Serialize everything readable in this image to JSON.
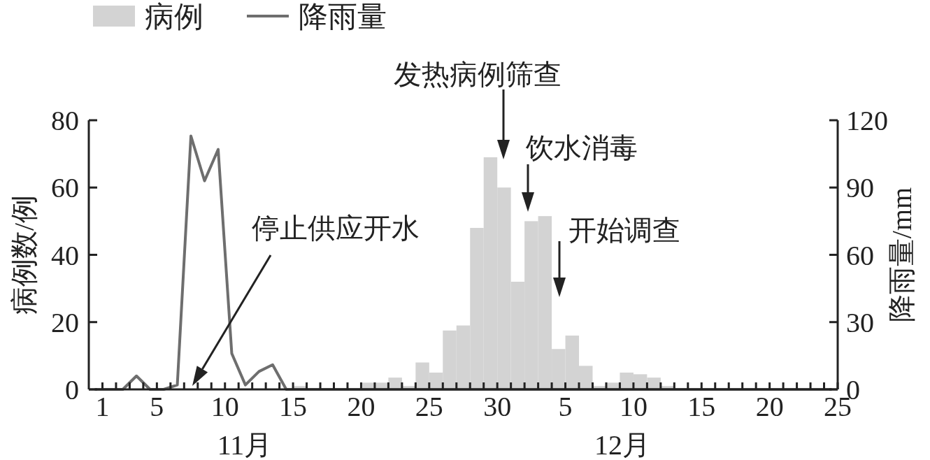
{
  "chart_data": {
    "type": "bar",
    "ylabel": "病例数/例",
    "y2label": "降雨量/mm",
    "legend": "top left",
    "xlim": [
      "--10-31",
      "--12-25"
    ],
    "xticks": [
      {
        "value": "--11-01",
        "label": "1"
      },
      {
        "value": "--11-02",
        "label": null
      },
      {
        "value": "--11-03",
        "label": null
      },
      {
        "value": "--11-04",
        "label": null
      },
      {
        "value": "--11-05",
        "label": "5"
      },
      {
        "value": "--11-06",
        "label": null
      },
      {
        "value": "--11-07",
        "label": null
      },
      {
        "value": "--11-08",
        "label": null
      },
      {
        "value": "--11-09",
        "label": null
      },
      {
        "value": "--11-10",
        "label": "10"
      },
      {
        "value": "--11-11",
        "label": null
      },
      {
        "value": "--11-12",
        "label": null
      },
      {
        "value": "--11-13",
        "label": null
      },
      {
        "value": "--11-14",
        "label": null
      },
      {
        "value": "--11-15",
        "label": "15"
      },
      {
        "value": "--11-16",
        "label": null
      },
      {
        "value": "--11-17",
        "label": null
      },
      {
        "value": "--11-18",
        "label": null
      },
      {
        "value": "--11-19",
        "label": null
      },
      {
        "value": "--11-20",
        "label": "20"
      },
      {
        "value": "--11-21",
        "label": null
      },
      {
        "value": "--11-22",
        "label": null
      },
      {
        "value": "--11-23",
        "label": null
      },
      {
        "value": "--11-24",
        "label": null
      },
      {
        "value": "--11-25",
        "label": "25"
      },
      {
        "value": "--11-26",
        "label": null
      },
      {
        "value": "--11-27",
        "label": null
      },
      {
        "value": "--11-28",
        "label": null
      },
      {
        "value": "--11-29",
        "label": null
      },
      {
        "value": "--11-30",
        "label": "30"
      },
      {
        "value": "--12-01",
        "label": null
      },
      {
        "value": "--12-02",
        "label": null
      },
      {
        "value": "--12-03",
        "label": null
      },
      {
        "value": "--12-04",
        "label": null
      },
      {
        "value": "--12-05",
        "label": "5"
      },
      {
        "value": "--12-06",
        "label": null
      },
      {
        "value": "--12-07",
        "label": null
      },
      {
        "value": "--12-08",
        "label": null
      },
      {
        "value": "--12-09",
        "label": null
      },
      {
        "value": "--12-10",
        "label": "10"
      },
      {
        "value": "--12-11",
        "label": null
      },
      {
        "value": "--12-12",
        "label": null
      },
      {
        "value": "--12-13",
        "label": null
      },
      {
        "value": "--12-14",
        "label": null
      },
      {
        "value": "--12-15",
        "label": "15"
      },
      {
        "value": "--12-16",
        "label": null
      },
      {
        "value": "--12-17",
        "label": null
      },
      {
        "value": "--12-18",
        "label": null
      },
      {
        "value": "--12-19",
        "label": null
      },
      {
        "value": "--12-20",
        "label": "20"
      },
      {
        "value": "--12-21",
        "label": null
      },
      {
        "value": "--12-22",
        "label": null
      },
      {
        "value": "--12-23",
        "label": null
      },
      {
        "value": "--12-24",
        "label": null
      },
      {
        "value": "--12-25",
        "label": "25"
      }
    ],
    "ylim": [
      0,
      80
    ],
    "yticks": [
      0,
      20,
      40,
      60,
      80
    ],
    "y2lim": [
      0,
      120
    ],
    "y2ticks": [
      0,
      30,
      60,
      90,
      120
    ],
    "series": [
      {
        "name": "病例",
        "color": "#d3d3d3",
        "x": [
          "--11-15T12:00",
          "--11-20T12:00",
          "--11-21T12:00",
          "--11-22T12:00",
          "--11-23T12:00",
          "--11-24T12:00",
          "--11-25T12:00",
          "--11-26T12:00",
          "--11-27T12:00",
          "--11-28T12:00",
          "--11-29T12:00",
          "--11-30T12:00",
          "--12-01T12:00",
          "--12-02T12:00",
          "--12-03T12:00",
          "--12-04T12:00",
          "--12-05T12:00",
          "--12-06T12:00",
          "--12-07T12:00",
          "--12-08T12:00",
          "--12-09T12:00",
          "--12-10T12:00",
          "--12-11T12:00",
          "--12-12T12:00"
        ],
        "values": [
          1,
          2,
          2,
          3.5,
          1,
          8,
          5,
          17.5,
          19,
          48,
          69,
          60,
          32,
          50,
          51.5,
          12,
          16,
          7,
          1,
          2,
          5,
          4.5,
          3.5,
          1
        ]
      },
      {
        "name": "降雨量",
        "type": "line",
        "axis": "y2",
        "color": "#6e6e6e",
        "x": [
          "--10-31T12:00",
          "--11-01T12:00",
          "--11-02T12:00",
          "--11-03T12:00",
          "--11-04T12:00",
          "--11-05T12:00",
          "--11-06T12:00",
          "--11-07T12:00",
          "--11-08T12:00",
          "--11-09T12:00",
          "--11-10T12:00",
          "--11-11T12:00",
          "--11-12T12:00",
          "--11-13T12:00",
          "--11-14T12:00",
          "--11-15T12:00",
          "--11-16T12:00",
          "--11-17T12:00",
          "--11-18T12:00",
          "--11-19T12:00",
          "--11-20T12:00",
          "--11-21T12:00",
          "--11-22T12:00",
          "--11-23T12:00",
          "--11-24T12:00",
          "--11-25T12:00",
          "--11-26T12:00",
          "--11-27T12:00",
          "--11-28T12:00",
          "--11-29T12:00",
          "--11-30T12:00",
          "--12-01T12:00",
          "--12-02T12:00",
          "--12-03T12:00",
          "--12-04T12:00",
          "--12-05T12:00",
          "--12-06T12:00",
          "--12-07T12:00",
          "--12-08T12:00",
          "--12-09T12:00",
          "--12-10T12:00",
          "--12-11T12:00",
          "--12-12T12:00",
          "--12-13T12:00",
          "--12-14T12:00",
          "--12-15T12:00",
          "--12-16T12:00",
          "--12-17T12:00",
          "--12-18T12:00",
          "--12-19T12:00",
          "--12-20T12:00",
          "--12-21T12:00",
          "--12-22T12:00",
          "--12-23T12:00",
          "--12-24T12:00"
        ],
        "values": [
          0,
          0,
          0,
          6,
          0,
          0,
          2,
          113,
          93,
          107,
          16,
          2,
          8,
          11,
          0,
          0,
          0,
          0,
          0,
          0,
          0,
          0,
          0,
          0,
          0,
          0,
          0,
          0,
          0,
          0,
          0,
          0,
          0,
          0,
          0,
          0,
          0,
          0,
          0,
          0,
          0,
          0,
          0,
          0,
          0,
          0,
          0,
          0,
          0,
          0,
          0,
          0,
          0,
          0,
          0
        ]
      }
    ],
    "annotations": [
      "停止供应开水",
      "发热病例筛查",
      "饮水消毒",
      "开始调查",
      "11月",
      "12月"
    ]
  }
}
